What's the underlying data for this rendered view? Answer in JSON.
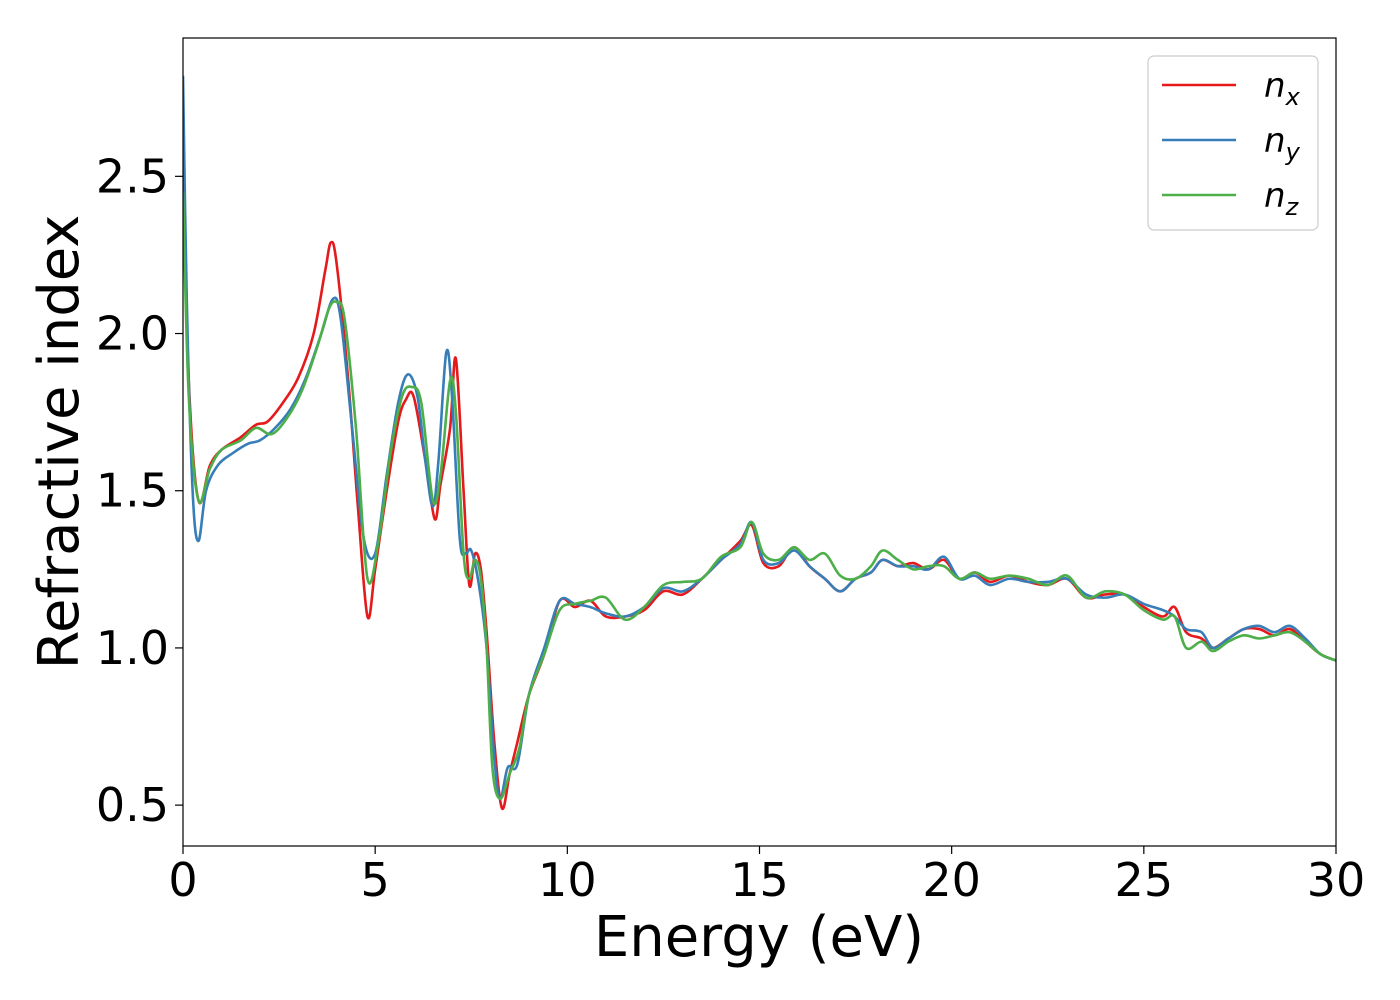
{
  "chart_data": {
    "type": "line",
    "xlabel": "Energy (eV)",
    "ylabel": "Refractive index",
    "xlim": [
      0,
      30
    ],
    "ylim": [
      0.37,
      2.94
    ],
    "xticks": [
      0,
      5,
      10,
      15,
      20,
      25,
      30
    ],
    "xtick_labels": [
      "0",
      "5",
      "10",
      "15",
      "20",
      "25",
      "30"
    ],
    "yticks": [
      0.5,
      1.0,
      1.5,
      2.0,
      2.5
    ],
    "ytick_labels": [
      "0.5",
      "1.0",
      "1.5",
      "2.0",
      "2.5"
    ],
    "grid": false,
    "legend_position": "top-right",
    "series": [
      {
        "name": "n_x",
        "label_main": "n",
        "label_sub": "x",
        "color": "#e41a1c",
        "x": [
          0,
          0.15,
          0.4,
          0.7,
          1.0,
          1.5,
          1.9,
          2.2,
          2.6,
          3.0,
          3.4,
          3.7,
          3.85,
          4.0,
          4.3,
          4.55,
          4.8,
          5.0,
          5.3,
          5.6,
          5.8,
          6.0,
          6.3,
          6.55,
          6.7,
          6.95,
          7.1,
          7.3,
          7.45,
          7.6,
          7.75,
          7.9,
          8.1,
          8.3,
          8.5,
          8.7,
          9.0,
          9.4,
          9.8,
          10.2,
          10.6,
          11.0,
          11.5,
          12.0,
          12.5,
          13.0,
          13.5,
          14.0,
          14.5,
          14.8,
          15.1,
          15.5,
          15.9,
          16.3,
          16.7,
          17.1,
          17.5,
          17.9,
          18.2,
          18.6,
          19.0,
          19.4,
          19.8,
          20.2,
          20.6,
          21.0,
          21.5,
          22.0,
          22.5,
          23.0,
          23.5,
          24.0,
          24.5,
          25.0,
          25.5,
          25.8,
          26.1,
          26.5,
          26.8,
          27.2,
          27.6,
          28.0,
          28.4,
          28.8,
          29.2,
          29.6,
          30.0
        ],
        "y": [
          2.55,
          1.85,
          1.47,
          1.58,
          1.63,
          1.67,
          1.71,
          1.72,
          1.78,
          1.86,
          2.0,
          2.2,
          2.29,
          2.22,
          1.85,
          1.45,
          1.1,
          1.25,
          1.5,
          1.72,
          1.79,
          1.8,
          1.6,
          1.41,
          1.52,
          1.7,
          1.92,
          1.5,
          1.2,
          1.3,
          1.25,
          1.05,
          0.7,
          0.49,
          0.6,
          0.7,
          0.85,
          0.98,
          1.15,
          1.13,
          1.15,
          1.1,
          1.1,
          1.12,
          1.18,
          1.17,
          1.22,
          1.28,
          1.34,
          1.39,
          1.27,
          1.26,
          1.32,
          1.26,
          1.22,
          1.18,
          1.22,
          1.24,
          1.28,
          1.26,
          1.27,
          1.25,
          1.28,
          1.22,
          1.24,
          1.21,
          1.23,
          1.21,
          1.2,
          1.22,
          1.16,
          1.17,
          1.17,
          1.13,
          1.1,
          1.13,
          1.05,
          1.03,
          1.0,
          1.03,
          1.06,
          1.06,
          1.04,
          1.06,
          1.02,
          0.98,
          0.96
        ]
      },
      {
        "name": "n_y",
        "label_main": "n",
        "label_sub": "y",
        "color": "#377eb8",
        "x": [
          0,
          0.1,
          0.25,
          0.4,
          0.6,
          0.9,
          1.3,
          1.7,
          2.0,
          2.4,
          2.8,
          3.2,
          3.6,
          3.9,
          4.1,
          4.4,
          4.7,
          5.0,
          5.3,
          5.6,
          5.85,
          6.1,
          6.3,
          6.5,
          6.65,
          6.85,
          7.0,
          7.2,
          7.35,
          7.5,
          7.7,
          7.9,
          8.1,
          8.25,
          8.45,
          8.7,
          9.0,
          9.4,
          9.8,
          10.2,
          10.6,
          11.0,
          11.5,
          12.0,
          12.5,
          13.0,
          13.5,
          14.0,
          14.5,
          14.8,
          15.1,
          15.5,
          15.9,
          16.3,
          16.7,
          17.1,
          17.5,
          17.9,
          18.2,
          18.6,
          19.0,
          19.4,
          19.8,
          20.2,
          20.6,
          21.0,
          21.5,
          22.0,
          22.5,
          23.0,
          23.5,
          24.0,
          24.5,
          25.0,
          25.5,
          25.8,
          26.1,
          26.5,
          26.8,
          27.2,
          27.6,
          28.0,
          28.4,
          28.8,
          29.2,
          29.6,
          30.0
        ],
        "y": [
          2.82,
          2.1,
          1.5,
          1.34,
          1.5,
          1.58,
          1.62,
          1.65,
          1.66,
          1.7,
          1.76,
          1.86,
          2.0,
          2.11,
          2.05,
          1.7,
          1.35,
          1.3,
          1.55,
          1.78,
          1.87,
          1.8,
          1.6,
          1.45,
          1.6,
          1.94,
          1.8,
          1.35,
          1.3,
          1.31,
          1.2,
          1.0,
          0.65,
          0.52,
          0.62,
          0.63,
          0.85,
          1.0,
          1.15,
          1.14,
          1.13,
          1.11,
          1.1,
          1.13,
          1.19,
          1.18,
          1.22,
          1.28,
          1.33,
          1.4,
          1.28,
          1.27,
          1.31,
          1.26,
          1.22,
          1.18,
          1.22,
          1.24,
          1.28,
          1.26,
          1.26,
          1.25,
          1.29,
          1.22,
          1.23,
          1.2,
          1.22,
          1.21,
          1.21,
          1.22,
          1.17,
          1.16,
          1.17,
          1.14,
          1.12,
          1.1,
          1.06,
          1.05,
          1.0,
          1.03,
          1.06,
          1.07,
          1.05,
          1.07,
          1.03,
          0.98,
          0.96
        ]
      },
      {
        "name": "n_z",
        "label_main": "n",
        "label_sub": "z",
        "color": "#4daf4a",
        "x": [
          0,
          0.15,
          0.4,
          0.7,
          1.0,
          1.5,
          1.9,
          2.3,
          2.7,
          3.1,
          3.5,
          3.8,
          4.0,
          4.2,
          4.5,
          4.8,
          5.1,
          5.4,
          5.7,
          5.95,
          6.2,
          6.5,
          6.7,
          6.95,
          7.1,
          7.3,
          7.45,
          7.6,
          7.75,
          7.9,
          8.05,
          8.25,
          8.5,
          8.75,
          9.0,
          9.4,
          9.8,
          10.2,
          10.6,
          11.0,
          11.5,
          12.0,
          12.5,
          13.0,
          13.5,
          14.0,
          14.5,
          14.8,
          15.1,
          15.5,
          15.9,
          16.3,
          16.7,
          17.1,
          17.5,
          17.9,
          18.2,
          18.6,
          19.0,
          19.4,
          19.8,
          20.2,
          20.6,
          21.0,
          21.5,
          22.0,
          22.5,
          23.0,
          23.5,
          24.0,
          24.5,
          25.0,
          25.5,
          25.8,
          26.1,
          26.5,
          26.8,
          27.2,
          27.6,
          28.0,
          28.4,
          28.8,
          29.2,
          29.6,
          30.0
        ],
        "y": [
          2.45,
          1.8,
          1.47,
          1.57,
          1.63,
          1.66,
          1.7,
          1.68,
          1.73,
          1.82,
          1.96,
          2.08,
          2.1,
          2.05,
          1.7,
          1.22,
          1.35,
          1.62,
          1.8,
          1.83,
          1.78,
          1.47,
          1.55,
          1.85,
          1.75,
          1.3,
          1.22,
          1.28,
          1.22,
          1.0,
          0.62,
          0.52,
          0.6,
          0.68,
          0.85,
          0.98,
          1.12,
          1.14,
          1.15,
          1.16,
          1.09,
          1.13,
          1.2,
          1.21,
          1.22,
          1.29,
          1.32,
          1.4,
          1.3,
          1.28,
          1.32,
          1.28,
          1.3,
          1.23,
          1.22,
          1.26,
          1.31,
          1.28,
          1.25,
          1.26,
          1.26,
          1.22,
          1.24,
          1.22,
          1.23,
          1.22,
          1.2,
          1.23,
          1.16,
          1.18,
          1.17,
          1.12,
          1.09,
          1.1,
          1.0,
          1.02,
          0.99,
          1.02,
          1.04,
          1.03,
          1.04,
          1.05,
          1.02,
          0.98,
          0.96
        ]
      }
    ]
  }
}
